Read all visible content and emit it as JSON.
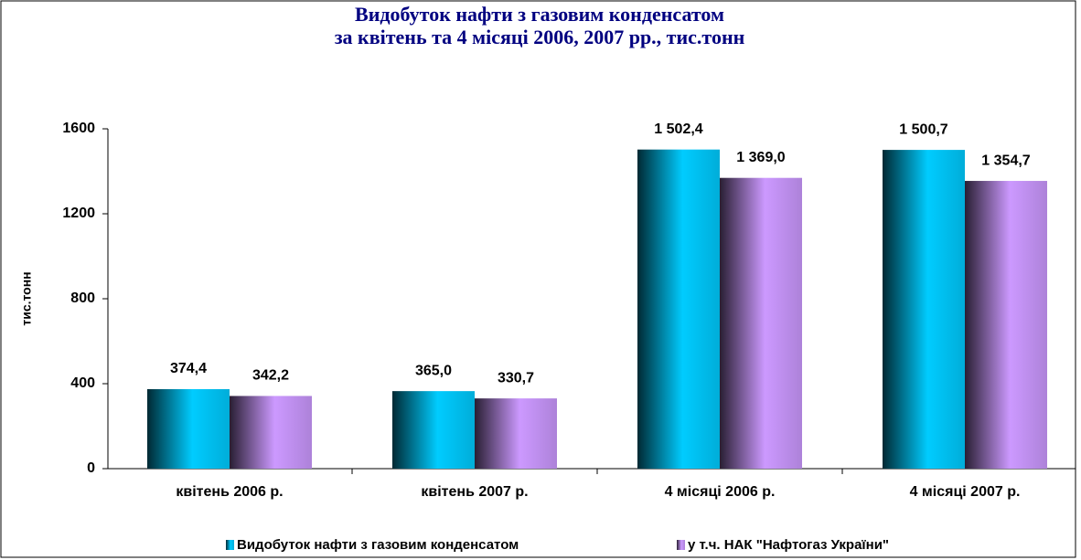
{
  "chart_data": {
    "type": "bar",
    "title": "Видобуток нафти з газовим конденсатом",
    "subtitle": "за квітень та 4 місяці 2006, 2007 рр., тис.тонн",
    "y_label": "тис.тонн",
    "categories": [
      "квітень 2006 р.",
      "квітень 2007 р.",
      "4 місяці 2006 р.",
      "4 місяці 2007 р."
    ],
    "series": [
      {
        "name": "Видобуток нафти з газовим конденсатом",
        "color": "#00ccff",
        "values": [
          374.4,
          365.0,
          1502.4,
          1500.7
        ],
        "value_labels": [
          "374,4",
          "365,0",
          "1 502,4",
          "1 500,7"
        ]
      },
      {
        "name": "у т.ч. НАК \"Нафтогаз України\"",
        "color": "#cc99ff",
        "values": [
          342.2,
          330.7,
          1369.0,
          1354.7
        ],
        "value_labels": [
          "342,2",
          "330,7",
          "1 369,0",
          "1 354,7"
        ]
      }
    ],
    "ylim": [
      0,
      1600
    ],
    "yticks": [
      0,
      400,
      800,
      1200,
      1600
    ],
    "grid": false,
    "legend": "bottom"
  }
}
